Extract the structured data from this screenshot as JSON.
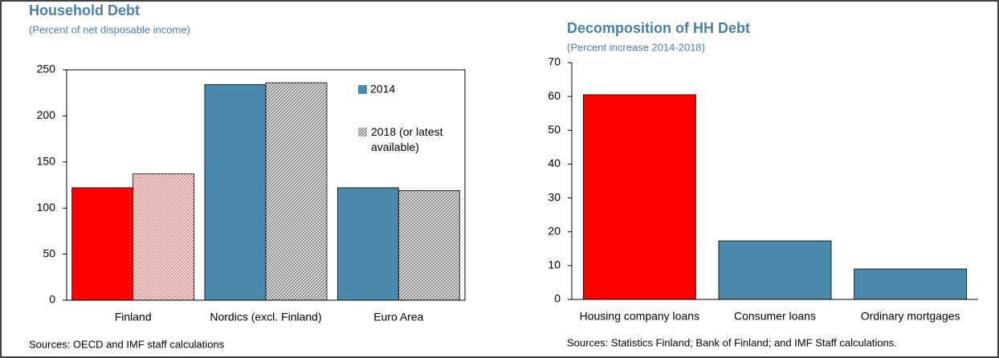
{
  "chart_data": [
    {
      "type": "bar",
      "title": "Household Debt",
      "subtitle": "(Percent of net disposable income)",
      "categories": [
        "Finland",
        "Nordics (excl. Finland)",
        "Euro Area"
      ],
      "series": [
        {
          "name": "2014",
          "color": "#4a8aad",
          "colors": [
            "#ff0000",
            "#4a8aad",
            "#4a8aad"
          ],
          "values": [
            122,
            234,
            122
          ]
        },
        {
          "name": "2018 (or latest available)",
          "color": "#b8b8b8",
          "colors": [
            "#f08080",
            "#b8b8b8",
            "#b8b8b8"
          ],
          "hatch": true,
          "values": [
            137,
            236,
            119
          ]
        }
      ],
      "ylim": [
        0,
        250
      ],
      "yticks": [
        0,
        50,
        100,
        150,
        200,
        250
      ],
      "note": "Sources: OECD and IMF staff calculations"
    },
    {
      "type": "bar",
      "title": "Decomposition of HH Debt",
      "subtitle": "(Percent increase 2014-2018)",
      "categories": [
        "Housing company loans",
        "Consumer loans",
        "Ordinary mortgages"
      ],
      "values": [
        60.5,
        17.3,
        9
      ],
      "colors": [
        "#ff0000",
        "#4a8aad",
        "#4a8aad"
      ],
      "ylim": [
        0,
        70
      ],
      "yticks": [
        0,
        10,
        20,
        30,
        40,
        50,
        60,
        70
      ],
      "note": "Sources: Statistics Finland; Bank of Finland; and IMF Staff calculations."
    }
  ]
}
